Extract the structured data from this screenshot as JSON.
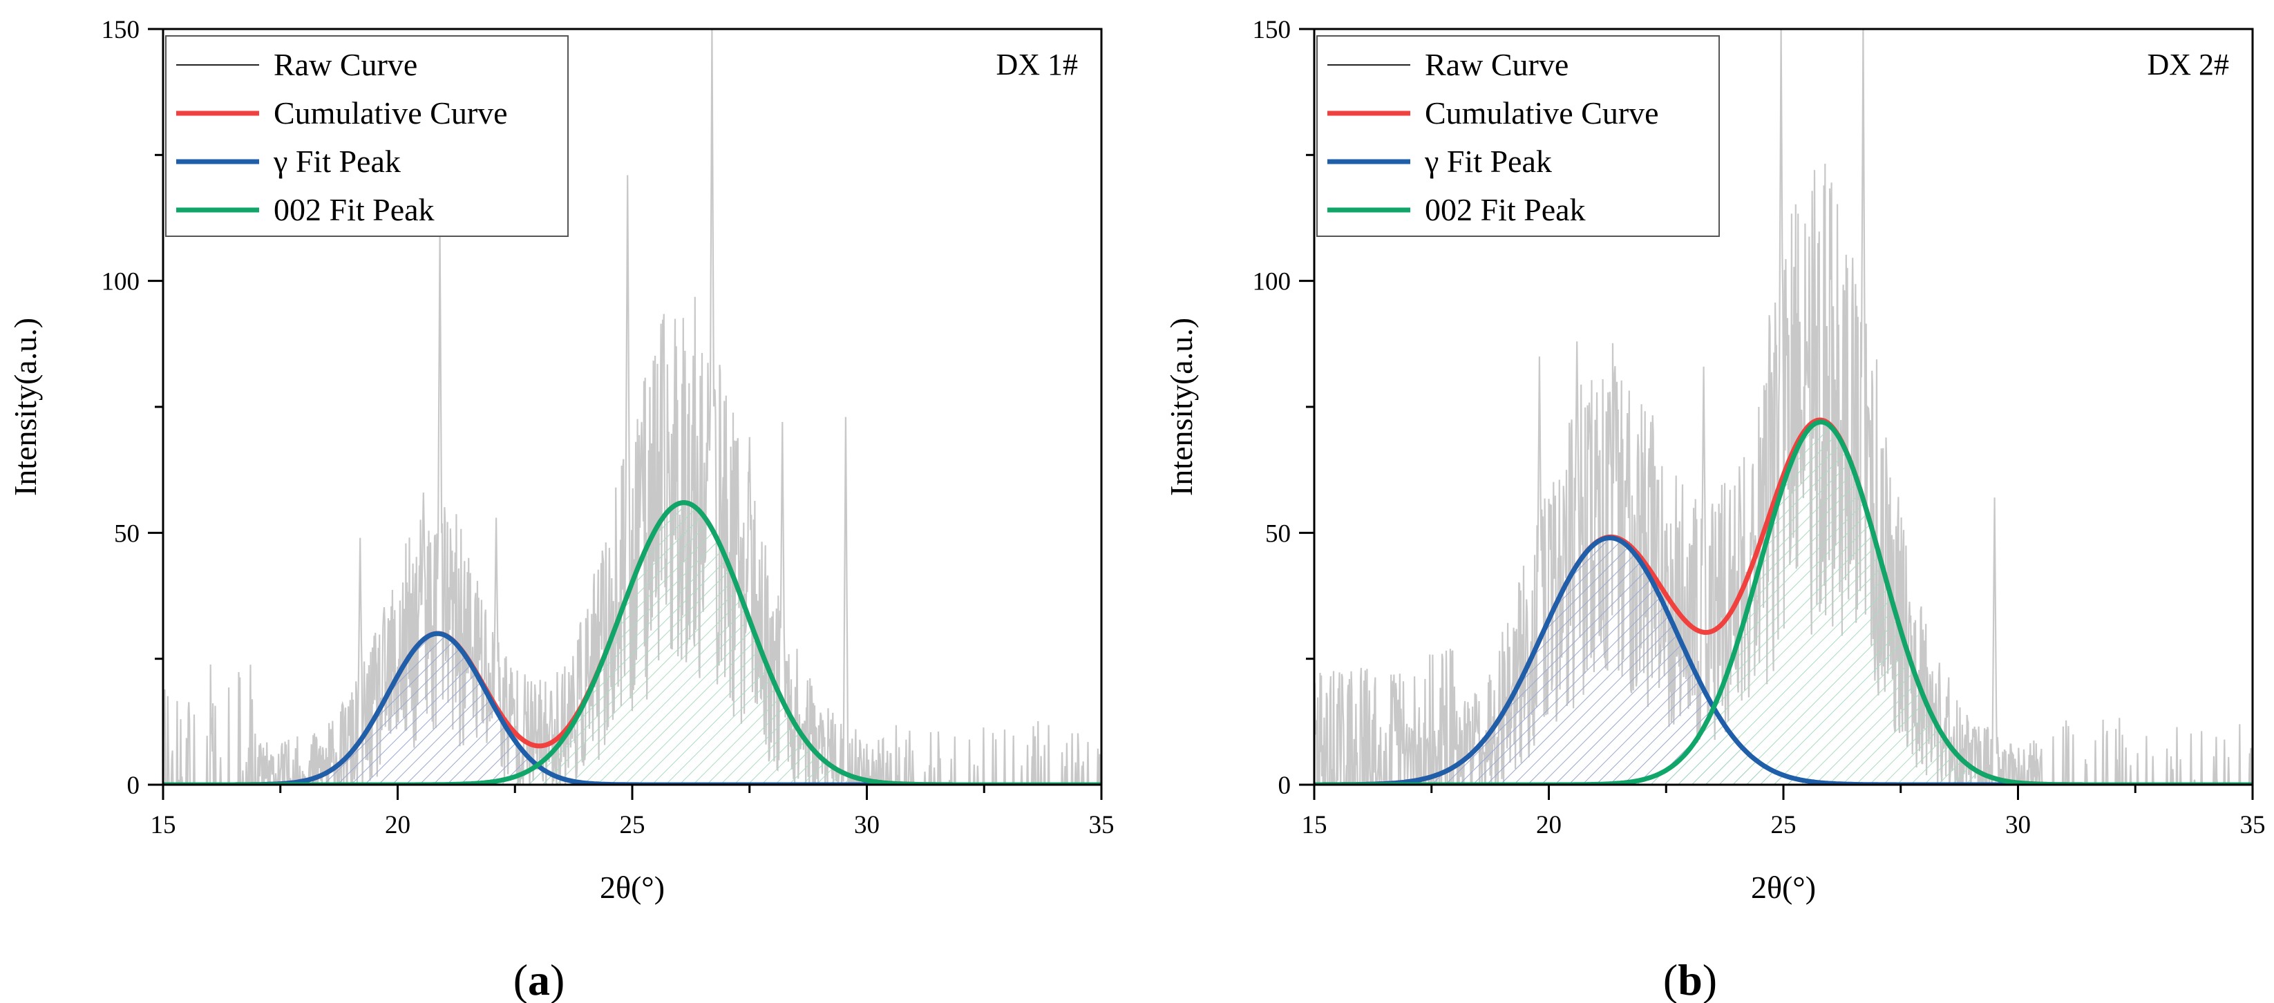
{
  "colors": {
    "raw": "#c8c8c8",
    "raw_legend": "#222222",
    "cumulative": "#f0413f",
    "gamma": "#1f5ea8",
    "p002": "#10a66a",
    "gamma_hatch": "#9aa8d0",
    "p002_hatch": "#a9dcc0"
  },
  "chart_data": [
    {
      "type": "line",
      "caption_letter": "a",
      "caption_open": "(",
      "caption_close": ")",
      "tag": "DX 1#",
      "xlabel": "2θ(°)",
      "ylabel": "Intensity(a.u.)",
      "xlim": [
        15,
        35
      ],
      "ylim": [
        0,
        150
      ],
      "x_ticks": [
        "15",
        "20",
        "25",
        "30",
        "35"
      ],
      "y_ticks": [
        "0",
        "50",
        "100",
        "150"
      ],
      "legend": [
        "Raw Curve",
        "Cumulative Curve",
        "γ Fit Peak",
        "002 Fit Peak"
      ],
      "series": [
        {
          "name": "γ Fit Peak",
          "kind": "gaussian",
          "center": 20.85,
          "amplitude": 30,
          "sigma": 1.05
        },
        {
          "name": "002 Fit Peak",
          "kind": "gaussian",
          "center": 26.1,
          "amplitude": 56,
          "sigma": 1.35
        },
        {
          "name": "Cumulative Curve",
          "kind": "sum"
        },
        {
          "name": "Raw Curve",
          "kind": "noisy",
          "seed": 11,
          "spikes": [
            [
              20.9,
              110
            ],
            [
              24.9,
              121
            ],
            [
              26.7,
              150
            ],
            [
              29.55,
              73
            ],
            [
              28.2,
              72
            ],
            [
              27.5,
              69
            ],
            [
              20.55,
              58
            ],
            [
              22.1,
              53
            ],
            [
              19.2,
              49
            ],
            [
              25.2,
              72
            ]
          ]
        }
      ]
    },
    {
      "type": "line",
      "caption_letter": "b",
      "caption_open": "(",
      "caption_close": ")",
      "tag": "DX 2#",
      "xlabel": "2θ(°)",
      "ylabel": "Intensity(a.u.)",
      "xlim": [
        15,
        35
      ],
      "ylim": [
        0,
        150
      ],
      "x_ticks": [
        "15",
        "20",
        "25",
        "30",
        "35"
      ],
      "y_ticks": [
        "0",
        "50",
        "100",
        "150"
      ],
      "legend": [
        "Raw Curve",
        "Cumulative Curve",
        "γ Fit Peak",
        "002 Fit Peak"
      ],
      "series": [
        {
          "name": "γ Fit Peak",
          "kind": "gaussian",
          "center": 21.3,
          "amplitude": 49,
          "sigma": 1.45
        },
        {
          "name": "002 Fit Peak",
          "kind": "gaussian",
          "center": 25.8,
          "amplitude": 72,
          "sigma": 1.3
        },
        {
          "name": "Cumulative Curve",
          "kind": "sum"
        },
        {
          "name": "Raw Curve",
          "kind": "noisy",
          "seed": 29,
          "spikes": [
            [
              20.6,
              88
            ],
            [
              24.95,
              150
            ],
            [
              26.7,
              150
            ],
            [
              23.3,
              83
            ],
            [
              29.5,
              57
            ],
            [
              21.3,
              78
            ],
            [
              19.8,
              85
            ],
            [
              25.5,
              88
            ]
          ]
        }
      ]
    }
  ]
}
